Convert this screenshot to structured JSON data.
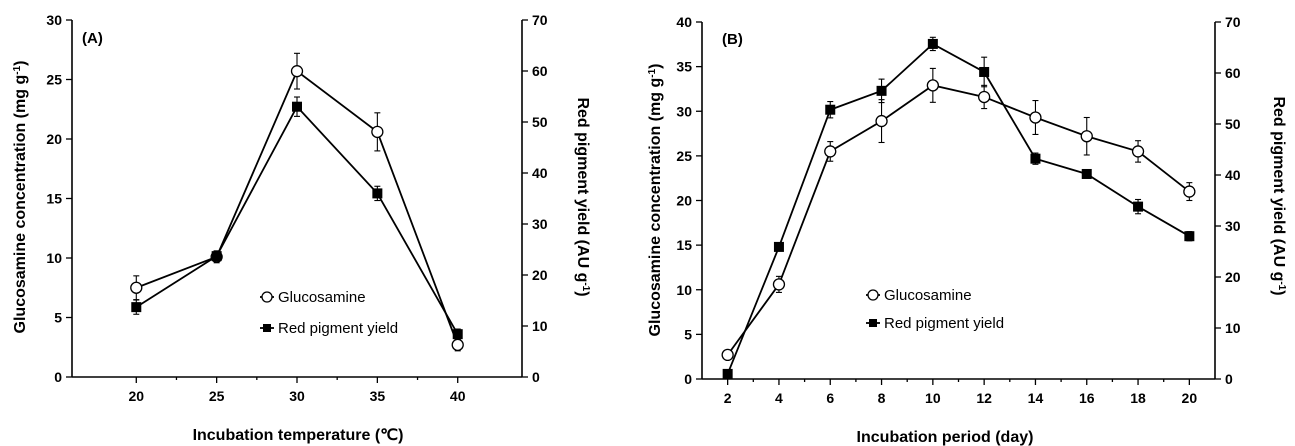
{
  "chart_data": [
    {
      "type": "line",
      "panel_label": "(A)",
      "xlabel": "Incubation temperature (℃)",
      "ylabel": "Glucosamine concentration (mg g",
      "ylabel_sup": "-1",
      "ylabel_end": ")",
      "y2label": "Red pigment yield (AU g",
      "y2label_sup": "-1",
      "y2label_end": ")",
      "x": [
        20,
        25,
        30,
        35,
        40
      ],
      "xlim": [
        16,
        44
      ],
      "xticks": [
        20,
        25,
        30,
        35,
        40
      ],
      "ylim": [
        0,
        30
      ],
      "yticks": [
        0,
        5,
        10,
        15,
        20,
        25,
        30
      ],
      "y2lim": [
        0,
        70
      ],
      "y2ticks": [
        0,
        10,
        20,
        30,
        40,
        50,
        60,
        70
      ],
      "legend_position": "lower-right",
      "series": [
        {
          "name": "Glucosamine",
          "axis": "left",
          "marker": "open-circle",
          "values": [
            7.5,
            10.1,
            25.7,
            20.6,
            2.7
          ],
          "errors": [
            1.0,
            0.5,
            1.5,
            1.6,
            0.5
          ]
        },
        {
          "name": "Red pigment yield",
          "axis": "right",
          "marker": "filled-square",
          "values": [
            13.7,
            23.7,
            53.0,
            36.0,
            8.4
          ],
          "errors": [
            1.4,
            1.0,
            1.9,
            1.4,
            1.0
          ]
        }
      ]
    },
    {
      "type": "line",
      "panel_label": "(B)",
      "xlabel": "Incubation period (day)",
      "ylabel": "Glucosamine concentration (mg g",
      "ylabel_sup": "-1",
      "ylabel_end": ")",
      "y2label": "Red pigment yield (AU g",
      "y2label_sup": "-1",
      "y2label_end": ")",
      "x": [
        2,
        4,
        6,
        8,
        10,
        12,
        14,
        16,
        18,
        20
      ],
      "xlim": [
        1,
        21
      ],
      "xticks": [
        2,
        4,
        6,
        8,
        10,
        12,
        14,
        16,
        18,
        20
      ],
      "ylim": [
        0,
        40
      ],
      "yticks": [
        0,
        5,
        10,
        15,
        20,
        25,
        30,
        35,
        40
      ],
      "y2lim": [
        0,
        70
      ],
      "y2ticks": [
        0,
        10,
        20,
        30,
        40,
        50,
        60,
        70
      ],
      "legend_position": "lower-right",
      "series": [
        {
          "name": "Glucosamine",
          "axis": "left",
          "marker": "open-circle",
          "values": [
            2.7,
            10.6,
            25.5,
            28.9,
            32.9,
            31.6,
            29.3,
            27.2,
            25.5,
            21.0
          ],
          "errors": [
            0.3,
            0.9,
            1.1,
            2.4,
            1.9,
            1.3,
            1.9,
            2.1,
            1.2,
            1.0
          ]
        },
        {
          "name": "Red pigment yield",
          "axis": "right",
          "marker": "filled-square",
          "values": [
            1.0,
            25.9,
            52.8,
            56.5,
            65.7,
            60.2,
            43.2,
            40.2,
            33.8,
            28.0
          ],
          "errors": [
            0.4,
            0.8,
            1.6,
            2.3,
            1.3,
            2.9,
            1.1,
            0.8,
            1.4,
            0.9
          ]
        }
      ]
    }
  ]
}
